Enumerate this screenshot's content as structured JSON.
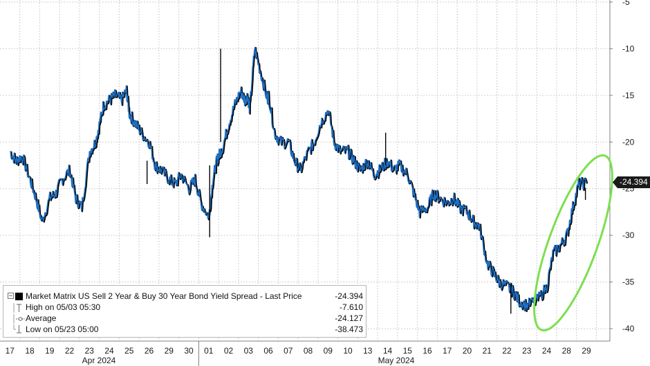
{
  "chart_data": {
    "type": "line",
    "ylim": [
      -41,
      -5
    ],
    "yticks": [
      -5,
      -10,
      -15,
      -20,
      -25,
      -30,
      -35,
      -40
    ],
    "x_tick_labels": [
      "17",
      "18",
      "19",
      "22",
      "23",
      "24",
      "25",
      "26",
      "29",
      "30",
      "01",
      "02",
      "03",
      "06",
      "07",
      "08",
      "09",
      "10",
      "13",
      "14",
      "15",
      "16",
      "17",
      "20",
      "21",
      "22",
      "23",
      "24",
      "28",
      "29"
    ],
    "month_labels": [
      "Apr 2024",
      "May 2024"
    ],
    "series": [
      {
        "name": "Market Matrix US Sell 2 Year & Buy 30 Year Bond Yield Spread - Last Price",
        "color": "#1f6fc4",
        "x": [
          0,
          0.3,
          0.6,
          1,
          1.3,
          1.6,
          2,
          2.3,
          2.6,
          3,
          3.3,
          3.6,
          4,
          4.3,
          4.5,
          4.7,
          5,
          5.3,
          5.6,
          5.85,
          6,
          6.3,
          6.6,
          7,
          7.3,
          7.6,
          8,
          8.3,
          8.6,
          9,
          9.3,
          9.6,
          10,
          10.2,
          10.4,
          10.5,
          10.7,
          11,
          11.3,
          11.6,
          11.8,
          11.95,
          12.05,
          12.3,
          12.6,
          12.95,
          13,
          13.3,
          13.6,
          14,
          14.3,
          14.6,
          15,
          15.3,
          15.6,
          16,
          16.3,
          16.6,
          17,
          17.3,
          17.6,
          18,
          18.3,
          18.6,
          19,
          19.3,
          19.6,
          20,
          20.3,
          20.6,
          21,
          21.3,
          21.6,
          22,
          22.3,
          22.6,
          23,
          23.3,
          23.6,
          24,
          24.3,
          24.6,
          25,
          25.3,
          25.6,
          26,
          26.5,
          27,
          27.3,
          27.7,
          28,
          28.3,
          28.6,
          29
        ],
        "values": [
          -21,
          -22,
          -21.5,
          -24,
          -26,
          -28.5,
          -26,
          -25.5,
          -24,
          -23,
          -26,
          -27,
          -21,
          -20,
          -18,
          -16,
          -15.5,
          -15,
          -15.5,
          -14.5,
          -17,
          -18,
          -19,
          -20,
          -22.5,
          -23,
          -24,
          -24.5,
          -23.5,
          -25,
          -24,
          -26.5,
          -28,
          -24,
          -22,
          -21.5,
          -20.5,
          -18,
          -16,
          -14.5,
          -15.5,
          -15,
          -16.5,
          -10,
          -12.5,
          -15.5,
          -15,
          -19,
          -20,
          -20,
          -22,
          -23,
          -21,
          -20,
          -18,
          -16.5,
          -20,
          -21,
          -21,
          -22,
          -23,
          -22,
          -23.5,
          -23,
          -22,
          -23,
          -22.5,
          -23.5,
          -25.5,
          -27.5,
          -27,
          -25.5,
          -26,
          -26.5,
          -26,
          -27,
          -27.5,
          -28.5,
          -29,
          -33,
          -34,
          -35,
          -35.5,
          -36,
          -37,
          -37.5,
          -37,
          -35.5,
          -32,
          -31,
          -30,
          -27,
          -24.5,
          -24.4
        ],
        "last": -24.394
      }
    ],
    "legend": {
      "main_label": "Market Matrix US Sell 2 Year & Buy 30 Year Bond Yield Spread - Last Price",
      "main_value": "-24.394",
      "high_label": "High on 05/03 05:30",
      "high_value": "-7.610",
      "avg_label": "Average",
      "avg_value": "-24.127",
      "low_label": "Low on 05/23 05:00",
      "low_value": "-38.473"
    },
    "last_tag": "-24.394",
    "colors": {
      "line_main": "#1f6fc4",
      "line_shadow": "#000000",
      "highlight": "#7cdf4f",
      "tag_bg": "#1a1a1a",
      "grid": "#cfcfcf",
      "axis": "#7f7f7f"
    },
    "annotations": [
      {
        "type": "ellipse",
        "note_color": "#7cdf4f"
      }
    ]
  }
}
